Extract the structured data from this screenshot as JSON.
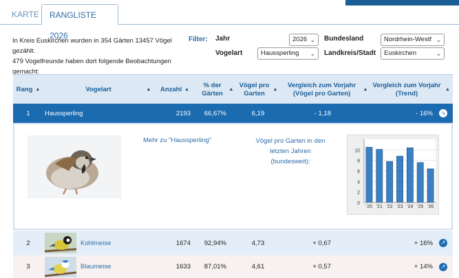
{
  "tabs": [
    {
      "label": "KARTE",
      "active": false
    },
    {
      "label": "RANGLISTE 2026",
      "active": true
    }
  ],
  "intro": {
    "line1": "In Kreis Euskirchen wurden in 354 Gärten 13457 Vögel gezählt.",
    "line2": "479 Vogelfreunde haben dort folgende Beobachtungen gemacht:"
  },
  "filters": {
    "label": "Filter:",
    "jahr": {
      "label": "Jahr",
      "value": "2026"
    },
    "vogelart": {
      "label": "Vogelart",
      "value": "Haussperling"
    },
    "bundesland": {
      "label": "Bundesland",
      "value": "Nordrhein-Westf"
    },
    "landkreis": {
      "label": "Landkreis/Stadt",
      "value": "Euskirchen"
    }
  },
  "table": {
    "headers": {
      "rang": "Rang",
      "vogelart": "Vogelart",
      "anzahl": "Anzahl",
      "pct_gaerten": "% der Gärten",
      "voegel_pro_garten": "Vögel pro Garten",
      "vergleich_voegel": "Vergleich zum Vorjahr (Vögel pro Garten)",
      "vergleich_trend": "Vergleich zum Vorjahr (Trend)"
    },
    "rows": [
      {
        "rang": "1",
        "vogelart": "Haussperling",
        "anzahl": "2193",
        "pct": "66,67%",
        "vpg": "6,19",
        "vgl": "- 1,18",
        "trend": "- 16%"
      },
      {
        "rang": "2",
        "vogelart": "Kohlmeise",
        "anzahl": "1674",
        "pct": "92,94%",
        "vpg": "4,73",
        "vgl": "+ 0,67",
        "trend": "+ 16%"
      },
      {
        "rang": "3",
        "vogelart": "Blaumeise",
        "anzahl": "1633",
        "pct": "87,01%",
        "vpg": "4,61",
        "vgl": "+ 0,57",
        "trend": "+ 14%"
      }
    ]
  },
  "detail": {
    "more_link": "Mehr zu \"Haussperling\"",
    "chart_caption": "Vögel pro Garten in den letzten Jahren (bundesweit):"
  },
  "colors": {
    "accent": "#1b6bb0",
    "header_bg": "#dce8f4",
    "bar": "#3b7fc4"
  },
  "chart_data": {
    "type": "bar",
    "categories": [
      "'20",
      "'21",
      "'22",
      "'23",
      "'24",
      "'25",
      "'26"
    ],
    "values": [
      10.5,
      10.1,
      7.8,
      8.8,
      10.4,
      7.6,
      6.4
    ],
    "yticks": [
      "0",
      "2",
      "4",
      "6",
      "8",
      "10"
    ],
    "ylim": [
      0,
      12
    ],
    "title": "",
    "xlabel": "",
    "ylabel": "",
    "grid": true
  }
}
